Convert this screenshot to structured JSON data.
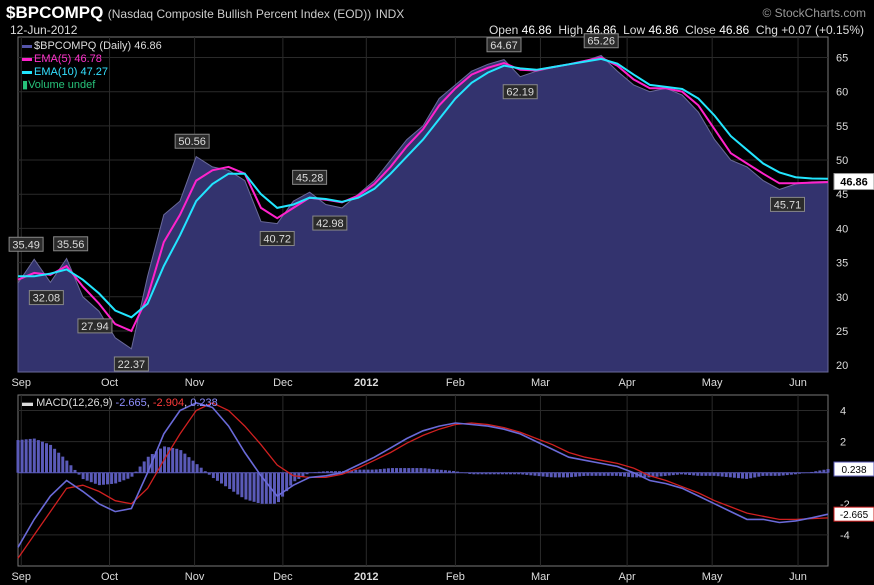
{
  "header": {
    "symbol": "$BPCOMPQ",
    "description": "(Nasdaq Composite Bullish Percent Index (EOD))",
    "exchange": "INDX",
    "watermark": "© StockCharts.com",
    "date": "12-Jun-2012",
    "open_label": "Open",
    "open": "46.86",
    "high_label": "High",
    "high": "46.86",
    "low_label": "Low",
    "low": "46.86",
    "close_label": "Close",
    "close": "46.86",
    "chg_label": "Chg",
    "chg": "+0.07 (+0.15%)"
  },
  "legend": {
    "price": "$BPCOMPQ (Daily) 46.86",
    "ema5": "EMA(5) 46.78",
    "ema10": "EMA(10) 47.27",
    "volume": "Volume undef"
  },
  "macd_legend": {
    "label": "MACD(12,26,9)",
    "macd": "-2.665",
    "signal": "-2.904",
    "hist": "0.238"
  },
  "colors": {
    "price_fill": "#33336e",
    "price_edge": "#6a6a9a",
    "ema5": "#ff22cc",
    "ema10": "#22e6ff",
    "macd_line": "#6a6ad8",
    "signal_line": "#d02020",
    "hist": "#5a5ab8"
  },
  "chart_data": [
    {
      "type": "area",
      "title": "$BPCOMPQ (Daily) 46.86",
      "x_tick_labels": [
        "Sep",
        "Oct",
        "Nov",
        "Dec",
        "2012",
        "Feb",
        "Mar",
        "Apr",
        "May",
        "Jun"
      ],
      "y_tick_labels": [
        "20",
        "25",
        "30",
        "35",
        "40",
        "45",
        "50",
        "55",
        "60",
        "65"
      ],
      "ylim": [
        19,
        68
      ],
      "grid": true,
      "last_value_label": "46.86",
      "series": [
        {
          "name": "$BPCOMPQ",
          "t": [
            0,
            0.02,
            0.04,
            0.06,
            0.08,
            0.1,
            0.12,
            0.14,
            0.16,
            0.18,
            0.2,
            0.22,
            0.24,
            0.26,
            0.28,
            0.3,
            0.32,
            0.34,
            0.36,
            0.38,
            0.4,
            0.42,
            0.44,
            0.46,
            0.48,
            0.5,
            0.52,
            0.54,
            0.56,
            0.58,
            0.6,
            0.62,
            0.64,
            0.66,
            0.68,
            0.7,
            0.72,
            0.74,
            0.76,
            0.78,
            0.8,
            0.82,
            0.84,
            0.86,
            0.88,
            0.9,
            0.92,
            0.94,
            0.96,
            0.98,
            1
          ],
          "values": [
            32,
            35.5,
            32.1,
            35.6,
            30,
            27.9,
            24,
            22.4,
            33,
            42,
            44,
            50.5,
            49,
            48.5,
            47,
            41,
            40.7,
            44,
            45.3,
            43.5,
            43,
            45,
            47,
            50,
            53,
            55,
            59,
            61,
            63,
            64,
            64.7,
            62.2,
            63,
            63.5,
            64,
            64.5,
            65.3,
            63,
            61,
            60,
            60.5,
            59.5,
            57,
            53,
            50,
            49,
            47,
            45.7,
            46.5,
            46.8,
            46.86
          ]
        },
        {
          "name": "EMA(5)",
          "t": [
            0,
            0.02,
            0.04,
            0.06,
            0.08,
            0.1,
            0.12,
            0.14,
            0.16,
            0.18,
            0.2,
            0.22,
            0.24,
            0.26,
            0.28,
            0.3,
            0.32,
            0.34,
            0.36,
            0.38,
            0.4,
            0.42,
            0.44,
            0.46,
            0.48,
            0.5,
            0.52,
            0.54,
            0.56,
            0.58,
            0.6,
            0.62,
            0.64,
            0.66,
            0.68,
            0.7,
            0.72,
            0.74,
            0.76,
            0.78,
            0.8,
            0.82,
            0.84,
            0.86,
            0.88,
            0.9,
            0.92,
            0.94,
            0.96,
            0.98,
            1
          ],
          "values": [
            32.5,
            33.5,
            33.2,
            34.5,
            31.5,
            29,
            26,
            25,
            30,
            38,
            42,
            47,
            48.5,
            49,
            48,
            43,
            41.5,
            43,
            44.5,
            44.2,
            43.8,
            44.8,
            46.5,
            49,
            52,
            54.5,
            58,
            60.5,
            62.5,
            63.5,
            64.2,
            63.2,
            63.1,
            63.6,
            64,
            64.5,
            65,
            63.8,
            61.8,
            60.5,
            60.5,
            60,
            58,
            54.5,
            51,
            49.5,
            48,
            46.6,
            46.6,
            46.7,
            46.78
          ]
        },
        {
          "name": "EMA(10)",
          "t": [
            0,
            0.02,
            0.04,
            0.06,
            0.08,
            0.1,
            0.12,
            0.14,
            0.16,
            0.18,
            0.2,
            0.22,
            0.24,
            0.26,
            0.28,
            0.3,
            0.32,
            0.34,
            0.36,
            0.38,
            0.4,
            0.42,
            0.44,
            0.46,
            0.48,
            0.5,
            0.52,
            0.54,
            0.56,
            0.58,
            0.6,
            0.62,
            0.64,
            0.66,
            0.68,
            0.7,
            0.72,
            0.74,
            0.76,
            0.78,
            0.8,
            0.82,
            0.84,
            0.86,
            0.88,
            0.9,
            0.92,
            0.94,
            0.96,
            0.98,
            1
          ],
          "values": [
            33,
            33,
            33.4,
            34,
            32.5,
            30.5,
            28,
            27,
            29,
            34.5,
            39,
            44,
            46.5,
            48,
            48,
            45,
            43,
            43.5,
            44.5,
            44.3,
            43.9,
            44.5,
            45.8,
            48,
            50.5,
            53,
            56,
            59,
            61.3,
            62.8,
            63.8,
            63.4,
            63.2,
            63.6,
            64,
            64.4,
            64.8,
            64.1,
            62.5,
            61,
            60.7,
            60.4,
            59,
            56.5,
            53.5,
            51.5,
            49.5,
            48.2,
            47.5,
            47.3,
            47.27
          ]
        }
      ],
      "annotations": [
        {
          "text": "35.49",
          "t": 0.01,
          "y": 35.49
        },
        {
          "text": "32.08",
          "t": 0.035,
          "y": 32.08
        },
        {
          "text": "35.56",
          "t": 0.065,
          "y": 35.56
        },
        {
          "text": "27.94",
          "t": 0.095,
          "y": 27.94
        },
        {
          "text": "22.37",
          "t": 0.14,
          "y": 22.37
        },
        {
          "text": "50.56",
          "t": 0.215,
          "y": 50.56
        },
        {
          "text": "40.72",
          "t": 0.32,
          "y": 40.72
        },
        {
          "text": "45.28",
          "t": 0.36,
          "y": 45.28
        },
        {
          "text": "42.98",
          "t": 0.385,
          "y": 42.98
        },
        {
          "text": "64.67",
          "t": 0.6,
          "y": 64.67
        },
        {
          "text": "62.19",
          "t": 0.62,
          "y": 62.19
        },
        {
          "text": "65.26",
          "t": 0.72,
          "y": 65.26
        },
        {
          "text": "45.71",
          "t": 0.95,
          "y": 45.71
        }
      ]
    },
    {
      "type": "line",
      "title": "MACD(12,26,9)",
      "x_tick_labels": [
        "Sep",
        "Oct",
        "Nov",
        "Dec",
        "2012",
        "Feb",
        "Mar",
        "Apr",
        "May",
        "Jun"
      ],
      "y_tick_labels": [
        "4",
        "2",
        "-2",
        "-4"
      ],
      "ylim": [
        -6,
        5
      ],
      "grid": true,
      "last_value_labels": [
        "0.238",
        "-2.665"
      ],
      "series": [
        {
          "name": "MACD",
          "t": [
            0,
            0.02,
            0.04,
            0.06,
            0.08,
            0.1,
            0.12,
            0.14,
            0.16,
            0.18,
            0.2,
            0.22,
            0.24,
            0.26,
            0.28,
            0.3,
            0.32,
            0.34,
            0.36,
            0.38,
            0.4,
            0.42,
            0.44,
            0.46,
            0.48,
            0.5,
            0.52,
            0.54,
            0.56,
            0.58,
            0.6,
            0.62,
            0.64,
            0.66,
            0.68,
            0.7,
            0.72,
            0.74,
            0.76,
            0.78,
            0.8,
            0.82,
            0.84,
            0.86,
            0.88,
            0.9,
            0.92,
            0.94,
            0.96,
            0.98,
            1
          ],
          "values": [
            -4.8,
            -3,
            -1.5,
            -0.5,
            -1.2,
            -2,
            -2.5,
            -2.3,
            0,
            2.5,
            4,
            4.5,
            4.2,
            3,
            1.3,
            -0.2,
            -1.5,
            -0.8,
            -0.3,
            -0.2,
            0,
            0.5,
            1,
            1.6,
            2.2,
            2.7,
            3,
            3.2,
            3.1,
            3,
            2.8,
            2.5,
            2,
            1.5,
            1,
            0.8,
            0.6,
            0.4,
            0,
            -0.5,
            -0.7,
            -1,
            -1.5,
            -2,
            -2.5,
            -3,
            -3,
            -3.2,
            -3.1,
            -2.9,
            -2.665
          ]
        },
        {
          "name": "Signal",
          "t": [
            0,
            0.02,
            0.04,
            0.06,
            0.08,
            0.1,
            0.12,
            0.14,
            0.16,
            0.18,
            0.2,
            0.22,
            0.24,
            0.26,
            0.28,
            0.3,
            0.32,
            0.34,
            0.36,
            0.38,
            0.4,
            0.42,
            0.44,
            0.46,
            0.48,
            0.5,
            0.52,
            0.54,
            0.56,
            0.58,
            0.6,
            0.62,
            0.64,
            0.66,
            0.68,
            0.7,
            0.72,
            0.74,
            0.76,
            0.78,
            0.8,
            0.82,
            0.84,
            0.86,
            0.88,
            0.9,
            0.92,
            0.94,
            0.96,
            0.98,
            1
          ],
          "values": [
            -5.5,
            -4,
            -2.5,
            -1,
            -0.8,
            -1.2,
            -1.8,
            -2,
            -1,
            0.8,
            2.5,
            4,
            4.5,
            4,
            3,
            1.8,
            0.5,
            -0.2,
            -0.3,
            -0.3,
            -0.1,
            0.3,
            0.8,
            1.3,
            1.9,
            2.4,
            2.8,
            3.1,
            3.2,
            3.1,
            2.9,
            2.6,
            2.2,
            1.8,
            1.3,
            1,
            0.8,
            0.6,
            0.3,
            -0.2,
            -0.5,
            -0.9,
            -1.3,
            -1.8,
            -2.2,
            -2.6,
            -2.8,
            -3,
            -3,
            -2.95,
            -2.904
          ]
        },
        {
          "name": "Histogram",
          "t": [
            0,
            0.02,
            0.04,
            0.06,
            0.08,
            0.1,
            0.12,
            0.14,
            0.16,
            0.18,
            0.2,
            0.22,
            0.24,
            0.26,
            0.28,
            0.3,
            0.32,
            0.34,
            0.36,
            0.38,
            0.4,
            0.42,
            0.44,
            0.46,
            0.48,
            0.5,
            0.52,
            0.54,
            0.56,
            0.58,
            0.6,
            0.62,
            0.64,
            0.66,
            0.68,
            0.7,
            0.72,
            0.74,
            0.76,
            0.78,
            0.8,
            0.82,
            0.84,
            0.86,
            0.88,
            0.9,
            0.92,
            0.94,
            0.96,
            0.98,
            1
          ],
          "values": [
            2.1,
            2.2,
            1.8,
            0.8,
            -0.4,
            -0.8,
            -0.7,
            -0.3,
            1,
            1.7,
            1.5,
            0.6,
            -0.3,
            -1,
            -1.7,
            -2,
            -2,
            -0.6,
            0,
            0.1,
            0.1,
            0.2,
            0.2,
            0.3,
            0.3,
            0.3,
            0.2,
            0.1,
            -0.1,
            -0.1,
            -0.1,
            -0.1,
            -0.2,
            -0.3,
            -0.3,
            -0.2,
            -0.2,
            -0.2,
            -0.3,
            -0.3,
            -0.2,
            -0.1,
            -0.2,
            -0.2,
            -0.3,
            -0.4,
            -0.2,
            -0.2,
            -0.1,
            0.05,
            0.238
          ]
        }
      ]
    }
  ]
}
